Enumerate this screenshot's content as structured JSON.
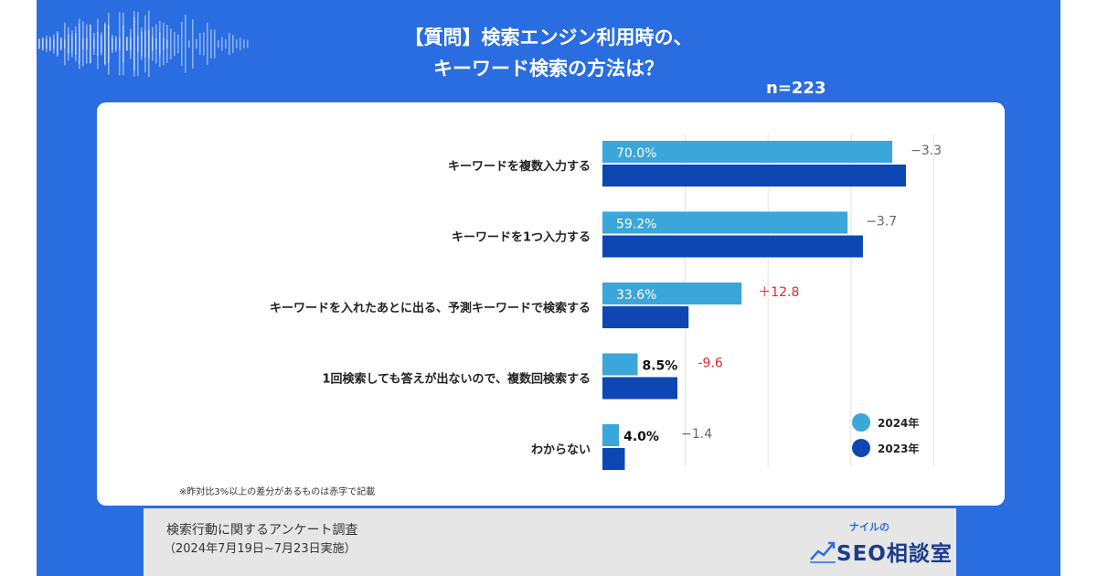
{
  "header": {
    "title_line1": "【質問】検索エンジン利用時の、",
    "title_line2": "キーワード検索の方法は？",
    "sample_size": "n=223"
  },
  "colors": {
    "background": "#2a6de0",
    "series_2024": "#3aa6d9",
    "series_2023": "#0d47b3",
    "diff_highlight": "#e8262b",
    "diff_normal": "#666666"
  },
  "chart_data": {
    "type": "bar",
    "orientation": "horizontal",
    "categories": [
      "キーワードを複数入力する",
      "キーワードを1つ入力する",
      "キーワードを入れたあとに出る、予測キーワードで検索する",
      "1回検索しても答えが出ないので、複数回検索する",
      "わからない"
    ],
    "series": [
      {
        "name": "2024年",
        "values": [
          70.0,
          59.2,
          33.6,
          8.5,
          4.0
        ],
        "labels": [
          "70.0%",
          "59.2%",
          "33.6%",
          "8.5%",
          "4.0%"
        ]
      },
      {
        "name": "2023年",
        "values": [
          73.3,
          62.9,
          20.8,
          18.1,
          5.4
        ]
      }
    ],
    "differences": [
      "−3.3",
      "−3.7",
      "＋12.8",
      "-9.6",
      "−1.4"
    ],
    "highlighted": [
      false,
      false,
      true,
      true,
      false
    ],
    "xlim": [
      0,
      80
    ],
    "grid": true,
    "legend_position": "bottom-right"
  },
  "footnote": "※昨対比3%以上の差分があるものは赤字で記載",
  "source": {
    "title": "検索行動に関するアンケート調査",
    "period": "（2024年7月19日~7月23日実施）"
  },
  "logo": {
    "sub": "ナイルの",
    "main": "SEO相談室"
  }
}
